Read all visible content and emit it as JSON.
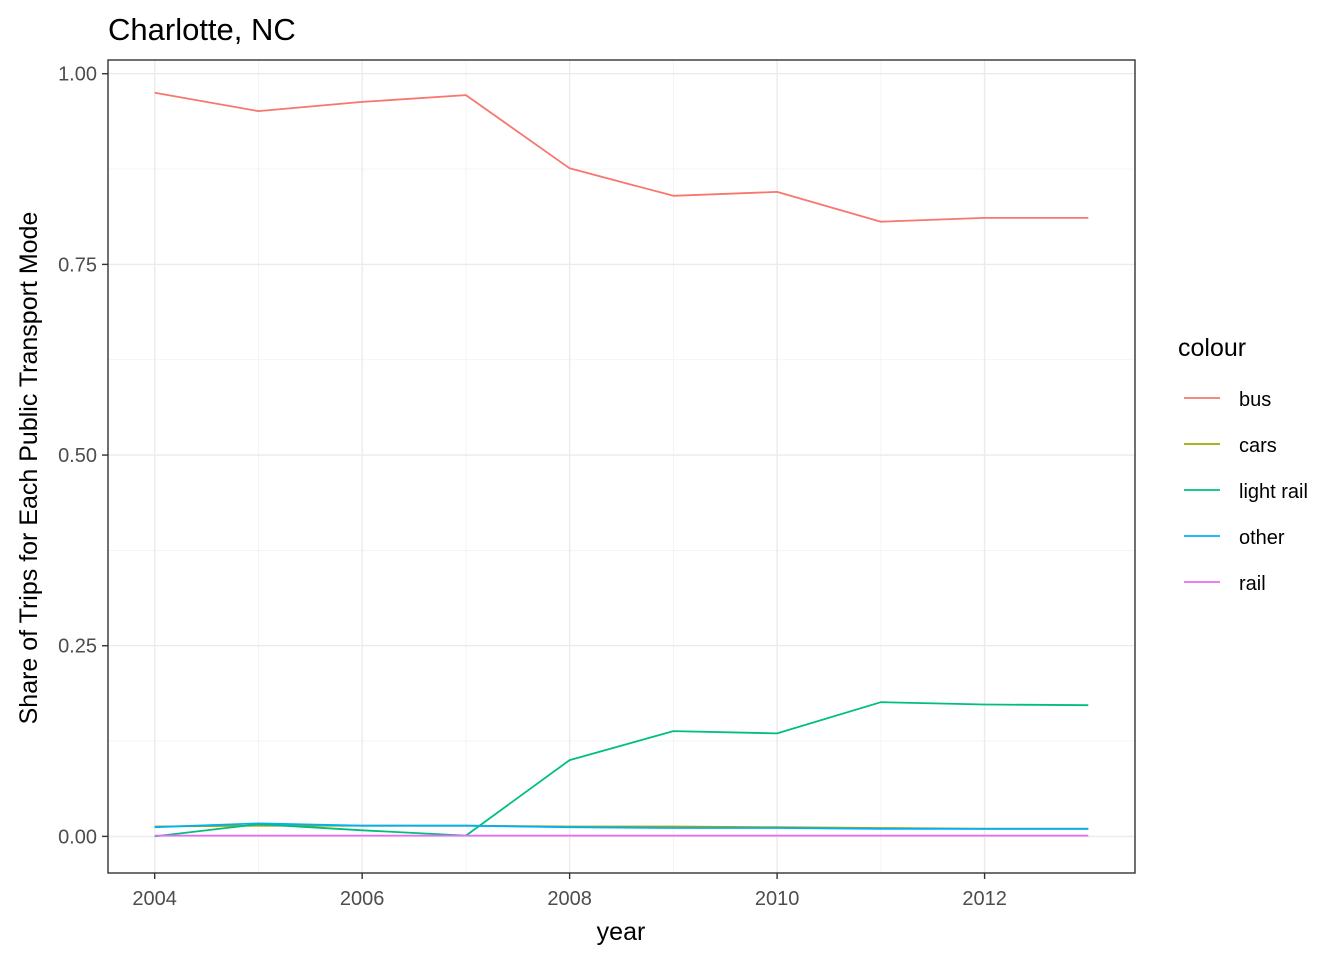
{
  "chart_data": {
    "type": "line",
    "title": "Charlotte, NC",
    "xlabel": "year",
    "ylabel": "Share of Trips for Each Public Transport Mode",
    "x": [
      2004,
      2005,
      2006,
      2007,
      2008,
      2009,
      2010,
      2011,
      2012,
      2013
    ],
    "xlim": [
      2003.55,
      2013.45
    ],
    "ylim": [
      -0.048,
      1.018
    ],
    "x_ticks": [
      2004,
      2006,
      2008,
      2010,
      2012
    ],
    "x_tick_labels": [
      "2004",
      "2006",
      "2008",
      "2010",
      "2012"
    ],
    "y_ticks": [
      0,
      0.25,
      0.5,
      0.75,
      1
    ],
    "y_tick_labels": [
      "0.00",
      "0.25",
      "0.50",
      "0.75",
      "1.00"
    ],
    "grid": true,
    "legend": {
      "title": "colour",
      "position": "right"
    },
    "series": [
      {
        "name": "bus",
        "color": "#F8766D",
        "values": [
          0.975,
          0.951,
          0.963,
          0.972,
          0.876,
          0.84,
          0.845,
          0.806,
          0.811,
          0.811
        ]
      },
      {
        "name": "cars",
        "color": "#A3A500",
        "values": [
          0.013,
          0.014,
          0.014,
          0.014,
          0.013,
          0.013,
          0.012,
          0.011,
          0.01,
          0.01
        ]
      },
      {
        "name": "light rail",
        "color": "#00BF7D",
        "values": [
          0.0,
          0.016,
          0.008,
          0.001,
          0.1,
          0.138,
          0.135,
          0.176,
          0.173,
          0.172
        ]
      },
      {
        "name": "other",
        "color": "#00B0F6",
        "values": [
          0.012,
          0.017,
          0.014,
          0.014,
          0.012,
          0.011,
          0.011,
          0.01,
          0.01,
          0.01
        ]
      },
      {
        "name": "rail",
        "color": "#E76BF3",
        "values": [
          0.001,
          0.001,
          0.001,
          0.001,
          0.001,
          0.001,
          0.001,
          0.001,
          0.001,
          0.001
        ]
      }
    ]
  }
}
